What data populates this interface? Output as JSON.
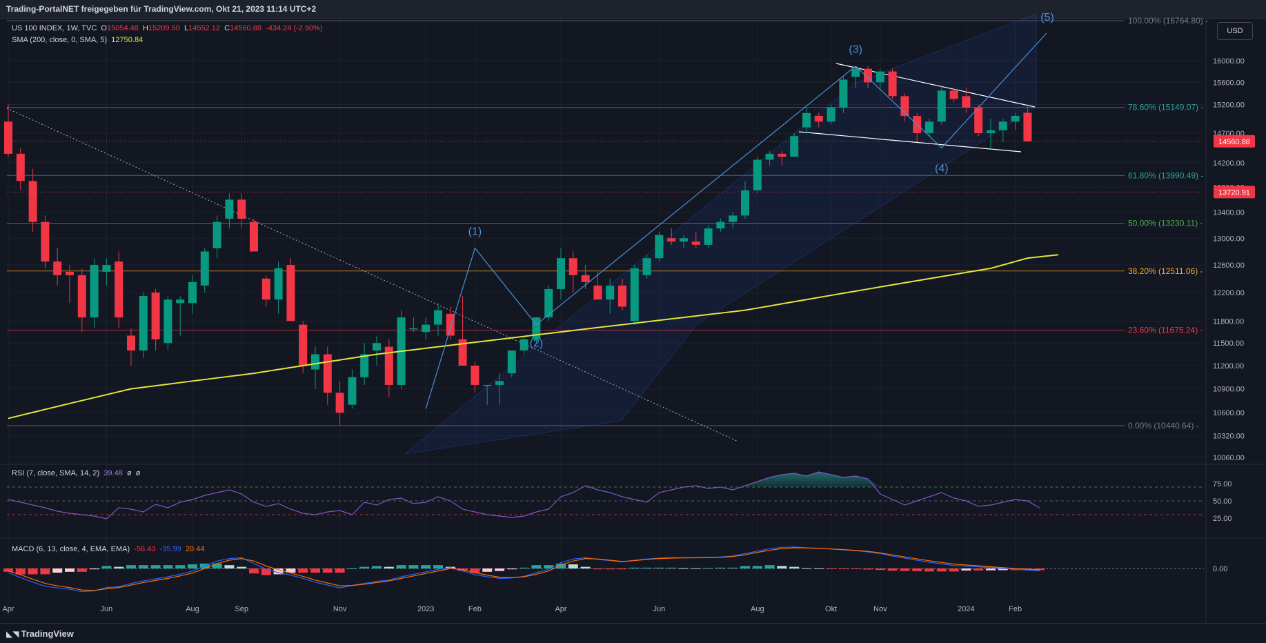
{
  "header": {
    "published": "Trading-PortalNET freigegeben für TradingView.com, Okt 21, 2023 11:14 UTC+2",
    "symbol": "US 100 INDEX, 1W, TVC",
    "ohlc": {
      "o_label": "O",
      "o": "15054.48",
      "h_label": "H",
      "h": "15209.50",
      "l_label": "L",
      "l": "14552.12",
      "c_label": "C",
      "c": "14560.88",
      "change": "-434.24 (-2.90%)"
    },
    "sma_label": "SMA (200, close, 0, SMA, 5)",
    "sma_value": "12750.84",
    "currency_button": "USD"
  },
  "footer": {
    "brand": "TradingView"
  },
  "colors": {
    "bg": "#131722",
    "up": "#089981",
    "down": "#f23645",
    "sma": "#e2e63c",
    "wave": "#4a90d9",
    "rsi": "#7e57c2",
    "macd": "#2962ff",
    "signal": "#ff6d00"
  },
  "chart_data": [
    {
      "type": "candlestick",
      "title": "US 100 INDEX, 1W, TVC",
      "ylim": [
        9900,
        16900
      ],
      "y_scale": "log",
      "x_ticks": [
        "Apr",
        "Jun",
        "Aug",
        "Sep",
        "Nov",
        "2023",
        "Feb",
        "Apr",
        "Jun",
        "Aug",
        "Okt",
        "Nov",
        "2024",
        "Feb"
      ],
      "y_ticks": [
        "16000.00",
        "15600.00",
        "15200.00",
        "14700.00",
        "14200.00",
        "13800.00",
        "13400.00",
        "13000.00",
        "12600.00",
        "12200.00",
        "11800.00",
        "11500.00",
        "11200.00",
        "10900.00",
        "10600.00",
        "10320.00",
        "10060.00"
      ],
      "price_tags": [
        {
          "value": "14560.88",
          "color": "#f23645"
        },
        {
          "value": "13720.91",
          "color": "#f23645"
        }
      ],
      "fib_levels": [
        {
          "label": "100.00% (16764.80)",
          "value": 16764.8,
          "color": "#787b86"
        },
        {
          "label": "78.60% (15149.07)",
          "value": 15149.07,
          "color": "#26a69a"
        },
        {
          "label": "61.80% (13990.49)",
          "value": 13990.49,
          "color": "#26a69a"
        },
        {
          "label": "50.00% (13230.11)",
          "value": 13230.11,
          "color": "#4caf50"
        },
        {
          "label": "38.20% (12511.06)",
          "value": 12511.06,
          "color": "#ffa726"
        },
        {
          "label": "23.60% (11675.24)",
          "value": 11675.24,
          "color": "#f23645"
        },
        {
          "label": "0.00% (10440.64)",
          "value": 10440.64,
          "color": "#787b86"
        }
      ],
      "wave_labels": [
        "(1)",
        "(2)",
        "(3)",
        "(4)",
        "(5)"
      ],
      "candles": [
        {
          "o": 14900,
          "h": 15200,
          "l": 14300,
          "c": 14350
        },
        {
          "o": 14350,
          "h": 14450,
          "l": 13750,
          "c": 13900
        },
        {
          "o": 13900,
          "h": 14100,
          "l": 13100,
          "c": 13250
        },
        {
          "o": 13250,
          "h": 13350,
          "l": 12550,
          "c": 12650
        },
        {
          "o": 12650,
          "h": 12850,
          "l": 12300,
          "c": 12450
        },
        {
          "o": 12500,
          "h": 12600,
          "l": 12050,
          "c": 12450
        },
        {
          "o": 12450,
          "h": 12550,
          "l": 11650,
          "c": 11850
        },
        {
          "o": 11850,
          "h": 12700,
          "l": 11700,
          "c": 12600
        },
        {
          "o": 12500,
          "h": 12700,
          "l": 12300,
          "c": 12600
        },
        {
          "o": 12650,
          "h": 12800,
          "l": 11700,
          "c": 11850
        },
        {
          "o": 11600,
          "h": 11700,
          "l": 11200,
          "c": 11400
        },
        {
          "o": 11400,
          "h": 12200,
          "l": 11300,
          "c": 12150
        },
        {
          "o": 12200,
          "h": 12250,
          "l": 11400,
          "c": 11550
        },
        {
          "o": 11500,
          "h": 12150,
          "l": 11400,
          "c": 12100
        },
        {
          "o": 12050,
          "h": 12150,
          "l": 11600,
          "c": 12100
        },
        {
          "o": 12050,
          "h": 12450,
          "l": 11900,
          "c": 12350
        },
        {
          "o": 12300,
          "h": 12850,
          "l": 12200,
          "c": 12800
        },
        {
          "o": 12850,
          "h": 13350,
          "l": 12700,
          "c": 13250
        },
        {
          "o": 13300,
          "h": 13700,
          "l": 13150,
          "c": 13600
        },
        {
          "o": 13600,
          "h": 13700,
          "l": 13150,
          "c": 13300
        },
        {
          "o": 13250,
          "h": 13300,
          "l": 12800,
          "c": 12800
        },
        {
          "o": 12400,
          "h": 12450,
          "l": 12000,
          "c": 12100
        },
        {
          "o": 12100,
          "h": 12650,
          "l": 11900,
          "c": 12550
        },
        {
          "o": 12600,
          "h": 12700,
          "l": 11800,
          "c": 11800
        },
        {
          "o": 11750,
          "h": 11800,
          "l": 11100,
          "c": 11200
        },
        {
          "o": 11150,
          "h": 11450,
          "l": 10900,
          "c": 11350
        },
        {
          "o": 11350,
          "h": 11450,
          "l": 10700,
          "c": 10850
        },
        {
          "o": 10850,
          "h": 11000,
          "l": 10450,
          "c": 10600
        },
        {
          "o": 10700,
          "h": 11150,
          "l": 10650,
          "c": 11050
        },
        {
          "o": 11050,
          "h": 11500,
          "l": 10950,
          "c": 11350
        },
        {
          "o": 11400,
          "h": 11600,
          "l": 11200,
          "c": 11500
        },
        {
          "o": 11450,
          "h": 11550,
          "l": 10800,
          "c": 10950
        },
        {
          "o": 10950,
          "h": 11950,
          "l": 10900,
          "c": 11850
        },
        {
          "o": 11700,
          "h": 11850,
          "l": 11650,
          "c": 11700
        },
        {
          "o": 11650,
          "h": 11850,
          "l": 11550,
          "c": 11750
        },
        {
          "o": 11750,
          "h": 12050,
          "l": 11600,
          "c": 11950
        },
        {
          "o": 11900,
          "h": 12000,
          "l": 11550,
          "c": 11600
        },
        {
          "o": 11550,
          "h": 12150,
          "l": 11250,
          "c": 11200
        },
        {
          "o": 11200,
          "h": 11250,
          "l": 10850,
          "c": 10950
        },
        {
          "o": 10950,
          "h": 10950,
          "l": 10700,
          "c": 10950
        },
        {
          "o": 10950,
          "h": 11100,
          "l": 10700,
          "c": 11000
        },
        {
          "o": 11100,
          "h": 11400,
          "l": 11050,
          "c": 11400
        },
        {
          "o": 11400,
          "h": 11600,
          "l": 11350,
          "c": 11550
        },
        {
          "o": 11550,
          "h": 11850,
          "l": 11500,
          "c": 11850
        },
        {
          "o": 11850,
          "h": 12300,
          "l": 11800,
          "c": 12250
        },
        {
          "o": 12250,
          "h": 12850,
          "l": 12100,
          "c": 12700
        },
        {
          "o": 12700,
          "h": 12800,
          "l": 12200,
          "c": 12450
        },
        {
          "o": 12450,
          "h": 12600,
          "l": 12250,
          "c": 12350
        },
        {
          "o": 12300,
          "h": 12500,
          "l": 12100,
          "c": 12100
        },
        {
          "o": 12100,
          "h": 12400,
          "l": 11900,
          "c": 12300
        },
        {
          "o": 12300,
          "h": 12400,
          "l": 11950,
          "c": 12000
        },
        {
          "o": 11800,
          "h": 12600,
          "l": 11750,
          "c": 12550
        },
        {
          "o": 12450,
          "h": 12750,
          "l": 12400,
          "c": 12700
        },
        {
          "o": 12700,
          "h": 13100,
          "l": 12650,
          "c": 13050
        },
        {
          "o": 13000,
          "h": 13150,
          "l": 12900,
          "c": 12950
        },
        {
          "o": 12950,
          "h": 13050,
          "l": 12850,
          "c": 13000
        },
        {
          "o": 12950,
          "h": 13100,
          "l": 12850,
          "c": 12900
        },
        {
          "o": 12900,
          "h": 13200,
          "l": 12850,
          "c": 13150
        },
        {
          "o": 13150,
          "h": 13300,
          "l": 13100,
          "c": 13250
        },
        {
          "o": 13250,
          "h": 13400,
          "l": 13150,
          "c": 13350
        },
        {
          "o": 13350,
          "h": 13900,
          "l": 13300,
          "c": 13750
        },
        {
          "o": 13750,
          "h": 14300,
          "l": 13700,
          "c": 14250
        },
        {
          "o": 14250,
          "h": 14400,
          "l": 14150,
          "c": 14350
        },
        {
          "o": 14350,
          "h": 14400,
          "l": 14150,
          "c": 14300
        },
        {
          "o": 14300,
          "h": 14700,
          "l": 14300,
          "c": 14650
        },
        {
          "o": 14800,
          "h": 15150,
          "l": 14700,
          "c": 15050
        },
        {
          "o": 15000,
          "h": 15050,
          "l": 14800,
          "c": 14900
        },
        {
          "o": 14900,
          "h": 15200,
          "l": 14850,
          "c": 15150
        },
        {
          "o": 15150,
          "h": 15700,
          "l": 15050,
          "c": 15650
        },
        {
          "o": 15700,
          "h": 15900,
          "l": 15500,
          "c": 15850
        },
        {
          "o": 15850,
          "h": 15900,
          "l": 15500,
          "c": 15600
        },
        {
          "o": 15600,
          "h": 15850,
          "l": 15450,
          "c": 15800
        },
        {
          "o": 15800,
          "h": 15850,
          "l": 15300,
          "c": 15350
        },
        {
          "o": 15350,
          "h": 15400,
          "l": 14900,
          "c": 15000
        },
        {
          "o": 15000,
          "h": 15050,
          "l": 14550,
          "c": 14700
        },
        {
          "o": 14700,
          "h": 14950,
          "l": 14650,
          "c": 14900
        },
        {
          "o": 14900,
          "h": 15550,
          "l": 14850,
          "c": 15450
        },
        {
          "o": 15450,
          "h": 15500,
          "l": 15250,
          "c": 15300
        },
        {
          "o": 15350,
          "h": 15500,
          "l": 15050,
          "c": 15150
        },
        {
          "o": 15150,
          "h": 15200,
          "l": 14650,
          "c": 14700
        },
        {
          "o": 14700,
          "h": 14950,
          "l": 14450,
          "c": 14750
        },
        {
          "o": 14750,
          "h": 14950,
          "l": 14550,
          "c": 14900
        },
        {
          "o": 14900,
          "h": 15050,
          "l": 14750,
          "c": 15000
        },
        {
          "o": 15054.48,
          "h": 15209.5,
          "l": 14552.12,
          "c": 14560.88
        }
      ],
      "sma": [
        {
          "i": 0,
          "v": 10530
        },
        {
          "i": 10,
          "v": 10900
        },
        {
          "i": 20,
          "v": 11100
        },
        {
          "i": 30,
          "v": 11350
        },
        {
          "i": 40,
          "v": 11550
        },
        {
          "i": 50,
          "v": 11750
        },
        {
          "i": 60,
          "v": 11950
        },
        {
          "i": 70,
          "v": 12250
        },
        {
          "i": 80,
          "v": 12550
        },
        {
          "i": 84,
          "v": 12750.84
        }
      ]
    },
    {
      "type": "line",
      "title": "RSI (7, close, SMA, 14, 2)",
      "series": [
        {
          "name": "RSI",
          "values": [
            52,
            48,
            44,
            40,
            35,
            32,
            30,
            28,
            24,
            40,
            38,
            34,
            45,
            40,
            48,
            52,
            58,
            62,
            66,
            60,
            48,
            42,
            46,
            38,
            32,
            30,
            34,
            36,
            30,
            48,
            44,
            52,
            54,
            46,
            48,
            56,
            50,
            38,
            34,
            30,
            28,
            26,
            28,
            34,
            38,
            56,
            62,
            72,
            66,
            62,
            56,
            52,
            48,
            62,
            66,
            70,
            72,
            68,
            70,
            66,
            72,
            78,
            84,
            88,
            90,
            86,
            92,
            88,
            84,
            86,
            82,
            60,
            52,
            44,
            50,
            56,
            62,
            54,
            50,
            42,
            44,
            48,
            52,
            50,
            39.48
          ]
        }
      ],
      "ylim": [
        0,
        100
      ],
      "y_ticks": [
        "75.00",
        "50.00",
        "25.00"
      ],
      "legend_values": [
        "39.48",
        "ø",
        "ø"
      ]
    },
    {
      "type": "line+bar",
      "title": "MACD (6, 13, close, 4, EMA, EMA)",
      "legend_values": [
        "-56.43",
        "-35.99",
        "20.44"
      ],
      "y_ticks": [
        "0.00"
      ],
      "series": [
        {
          "name": "MACD",
          "values": [
            -100,
            -220,
            -330,
            -430,
            -470,
            -500,
            -560,
            -540,
            -460,
            -440,
            -360,
            -300,
            -250,
            -200,
            -140,
            -60,
            60,
            180,
            240,
            260,
            120,
            -20,
            -100,
            -160,
            -240,
            -330,
            -400,
            -470,
            -410,
            -360,
            -310,
            -280,
            -200,
            -140,
            -80,
            -20,
            20,
            -60,
            -150,
            -200,
            -240,
            -230,
            -190,
            -100,
            -20,
            140,
            230,
            260,
            220,
            190,
            160,
            200,
            230,
            250,
            260,
            262,
            262,
            270,
            280,
            300,
            360,
            420,
            480,
            510,
            520,
            500,
            490,
            470,
            450,
            430,
            400,
            360,
            300,
            250,
            200,
            150,
            110,
            70,
            60,
            40,
            20,
            0,
            -20,
            -40,
            -56.43
          ]
        },
        {
          "name": "Signal",
          "values": [
            -60,
            -150,
            -260,
            -360,
            -420,
            -460,
            -520,
            -530,
            -490,
            -460,
            -400,
            -340,
            -290,
            -240,
            -180,
            -110,
            0,
            120,
            200,
            240,
            180,
            60,
            -30,
            -110,
            -190,
            -280,
            -350,
            -420,
            -410,
            -380,
            -340,
            -300,
            -240,
            -180,
            -120,
            -60,
            0,
            -30,
            -100,
            -160,
            -210,
            -220,
            -200,
            -140,
            -60,
            80,
            180,
            240,
            230,
            200,
            170,
            190,
            220,
            240,
            250,
            255,
            258,
            262,
            270,
            290,
            330,
            390,
            440,
            480,
            500,
            495,
            488,
            472,
            456,
            438,
            412,
            378,
            326,
            280,
            232,
            186,
            146,
            106,
            84,
            64,
            42,
            20,
            0,
            -20,
            -35.99
          ]
        }
      ]
    }
  ]
}
